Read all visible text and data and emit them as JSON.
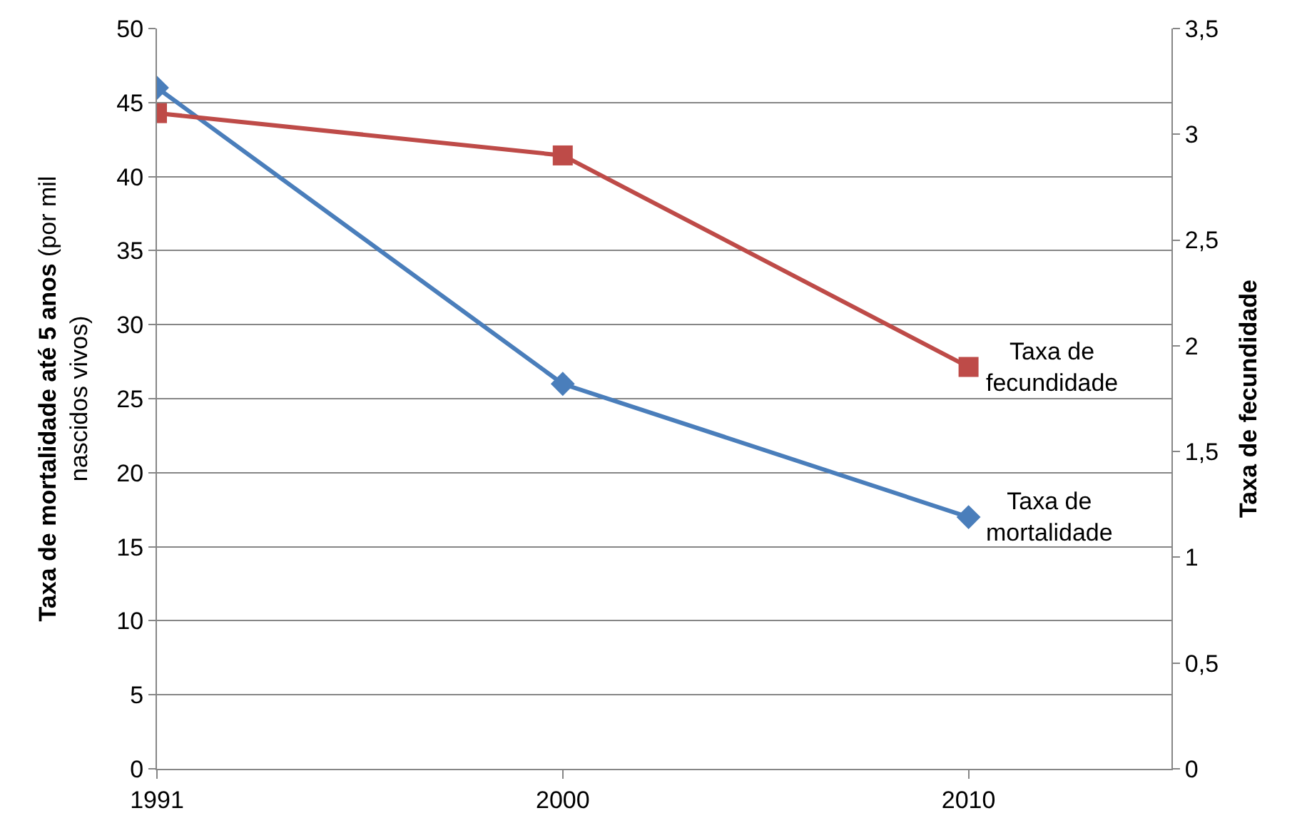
{
  "chart_data": {
    "type": "line",
    "categories": [
      "1991",
      "2000",
      "2010"
    ],
    "ylabel": "Taxa de mortalidade até 5 anos (por mil nascidos vivos)",
    "y2label": "Taxa de fecundidade",
    "ylim": [
      0,
      50
    ],
    "yticks": [
      0,
      5,
      10,
      15,
      20,
      25,
      30,
      35,
      40,
      45,
      50
    ],
    "y2lim": [
      0,
      3.5
    ],
    "y2ticks": [
      0,
      {
        "value": 0.5,
        "label": "0,5"
      },
      1,
      {
        "value": 1.5,
        "label": "1,5"
      },
      2,
      {
        "value": 2.5,
        "label": "2,5"
      },
      3,
      {
        "value": 3.5,
        "label": "3,5"
      }
    ],
    "grid": "y",
    "legend": false,
    "line_style": "solid",
    "series": [
      {
        "name": "Taxa de mortalidade",
        "color": "#4a7ebb",
        "marker": "diamond",
        "values": [
          46,
          26,
          17
        ]
      },
      {
        "name": "Taxa de fecundidade",
        "color": "#be4b48",
        "marker": "square",
        "axis": "y2",
        "values": [
          3.1,
          2.9,
          1.9
        ]
      }
    ]
  }
}
